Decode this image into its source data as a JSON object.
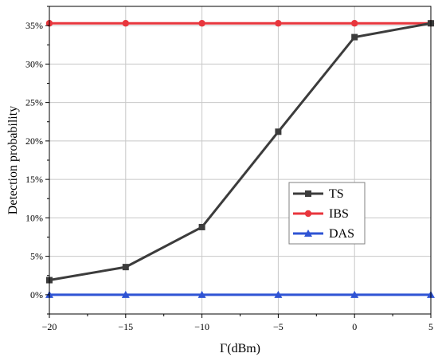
{
  "chart_data": {
    "type": "line",
    "xlabel": "Γ(dBm)",
    "ylabel": "Detection probability",
    "x": [
      -20,
      -15,
      -10,
      -5,
      0,
      5
    ],
    "xlim": [
      -20,
      5
    ],
    "ylim": [
      -2.5,
      37.5
    ],
    "x_ticks": [
      -20,
      -15,
      -10,
      -5,
      0,
      5
    ],
    "x_tick_labels": [
      "−20",
      "−15",
      "−10",
      "−5",
      "0",
      "5"
    ],
    "y_ticks": [
      0,
      5,
      10,
      15,
      20,
      25,
      30,
      35
    ],
    "y_tick_labels": [
      "0%",
      "5%",
      "10%",
      "15%",
      "20%",
      "25%",
      "30%",
      "35%"
    ],
    "grid": true,
    "legend_position": "center-right",
    "series": [
      {
        "name": "TS",
        "values": [
          1.9,
          3.6,
          8.8,
          21.2,
          33.5,
          35.3
        ],
        "color": "#3c3c3c",
        "marker": "square"
      },
      {
        "name": "IBS",
        "values": [
          35.3,
          35.3,
          35.3,
          35.3,
          35.3,
          35.3
        ],
        "color": "#e8363d",
        "marker": "circle"
      },
      {
        "name": "DAS",
        "values": [
          0,
          0,
          0,
          0,
          0,
          0
        ],
        "color": "#2f54d4",
        "marker": "triangle"
      }
    ]
  }
}
